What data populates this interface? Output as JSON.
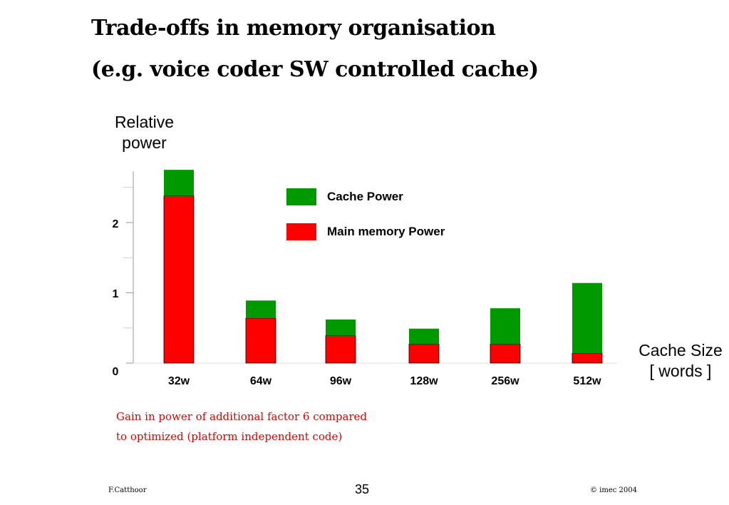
{
  "slide": {
    "title_line1": "Trade-offs in memory organisation",
    "title_line2": "(e.g. voice coder SW controlled cache)",
    "note_line1": "Gain in power of additional factor 6 compared",
    "note_line2": "to optimized (platform independent code)",
    "footer_author": "F.Catthoor",
    "page_number": "35",
    "footer_copyright": "© imec 2004"
  },
  "chart_data": {
    "type": "bar",
    "stacked": true,
    "categories": [
      "32w",
      "64w",
      "96w",
      "128w",
      "256w",
      "512w"
    ],
    "series": [
      {
        "name": "Main memory Power",
        "color": "#ff0000",
        "values": [
          2.38,
          0.64,
          0.39,
          0.27,
          0.27,
          0.14
        ]
      },
      {
        "name": "Cache Power",
        "color": "#009900",
        "values": [
          0.37,
          0.25,
          0.23,
          0.22,
          0.51,
          1.0
        ]
      }
    ],
    "ylabel_line1": "Relative",
    "ylabel_line2": "power",
    "xlabel_line1": "Cache Size",
    "xlabel_line2": "[ words ]",
    "yticks": [
      "0",
      "1",
      "2"
    ],
    "ylim": [
      0,
      2.75
    ],
    "legend_position": "top-center"
  }
}
